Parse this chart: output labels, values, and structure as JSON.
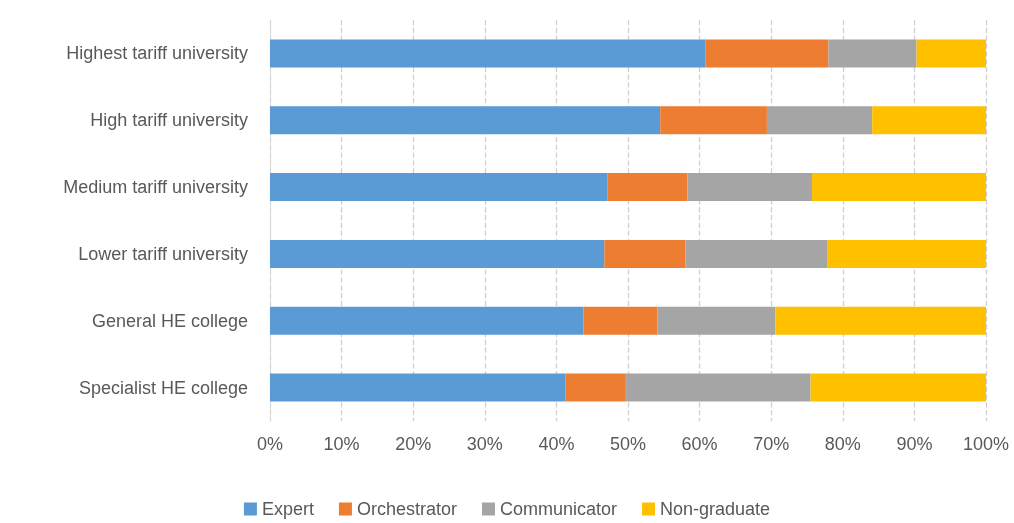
{
  "chart_data": {
    "type": "bar",
    "orientation": "horizontal",
    "stacked": true,
    "grid": "x",
    "legend": "bottom",
    "categories": [
      "Highest tariff university",
      "High tariff university",
      "Medium tariff university",
      "Lower tariff university",
      "General HE college",
      "Specialist HE college"
    ],
    "series": [
      {
        "name": "Expert",
        "color": "#5b9bd5",
        "values": [
          60.8,
          54.5,
          47.1,
          46.7,
          43.8,
          41.3
        ]
      },
      {
        "name": "Orchestrator",
        "color": "#ed7d31",
        "values": [
          17.2,
          14.9,
          11.2,
          11.3,
          10.3,
          8.4
        ]
      },
      {
        "name": "Communicator",
        "color": "#a5a5a5",
        "values": [
          12.3,
          14.7,
          17.4,
          19.8,
          16.5,
          25.8
        ]
      },
      {
        "name": "Non-graduate",
        "color": "#ffc000",
        "values": [
          9.7,
          15.9,
          24.3,
          22.2,
          29.4,
          24.5
        ]
      }
    ],
    "xlim": [
      0,
      100
    ],
    "xticks": [
      {
        "value": 0,
        "label": "0%"
      },
      {
        "value": 10,
        "label": "10%"
      },
      {
        "value": 20,
        "label": "20%"
      },
      {
        "value": 30,
        "label": "30%"
      },
      {
        "value": 40,
        "label": "40%"
      },
      {
        "value": 50,
        "label": "50%"
      },
      {
        "value": 60,
        "label": "60%"
      },
      {
        "value": 70,
        "label": "70%"
      },
      {
        "value": 80,
        "label": "80%"
      },
      {
        "value": 90,
        "label": "90%"
      },
      {
        "value": 100,
        "label": "100%"
      }
    ]
  }
}
